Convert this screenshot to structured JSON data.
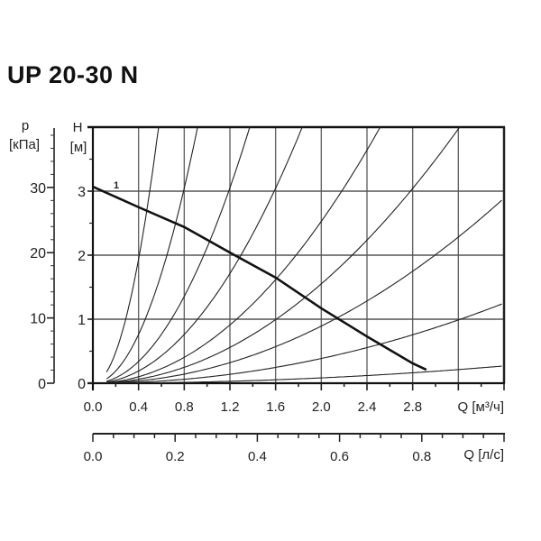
{
  "title": "UP 20-30 N",
  "chart_data": {
    "type": "line",
    "title": "UP 20-30 N",
    "ylabel_left": {
      "name": "p",
      "unit": "[кПа]"
    },
    "ylabel": {
      "name": "H",
      "unit": "[м]"
    },
    "xlabel": "Q [м³/ч]",
    "xlabel_secondary": "Q [л/с]",
    "xlim": [
      0,
      3.6
    ],
    "ylim": [
      0,
      4
    ],
    "p_ylim_kpa": [
      0,
      39.2
    ],
    "x_ticks": [
      "0.0",
      "0.4",
      "0.8",
      "1.2",
      "1.6",
      "2.0",
      "2.4",
      "2.8"
    ],
    "y_ticks": [
      "0",
      "1",
      "2",
      "3"
    ],
    "p_ticks": [
      "0",
      "10",
      "20",
      "30"
    ],
    "x2_ticks": [
      "0.0",
      "0.2",
      "0.4",
      "0.6",
      "0.8"
    ],
    "grid": true,
    "pump_curve": {
      "name": "1",
      "x": [
        0,
        0.4,
        0.8,
        1.2,
        1.6,
        2.0,
        2.4,
        2.8,
        2.92
      ],
      "y": [
        3.07,
        2.75,
        2.44,
        2.04,
        1.65,
        1.17,
        0.73,
        0.31,
        0.21
      ]
    },
    "system_curves_k": [
      12.1,
      4.76,
      2.12,
      1.19,
      0.632,
      0.388,
      0.223,
      0.0965,
      0.0208
    ],
    "system_curve_start_q": 0.12
  }
}
